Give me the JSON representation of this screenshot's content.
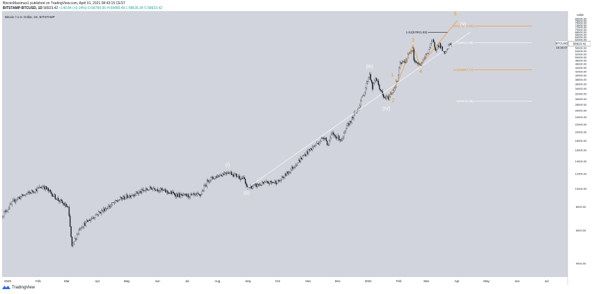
{
  "header": {
    "line1": "BitcoinMaximus1 published on TradingView.com, April 01, 2021 08:43:15 CEST",
    "symbol": "BITSTAMP:BTCUSD, 1D",
    "price": "58923.42",
    "change": "+140.84 (+0.24%)",
    "ohlc": "O:58789.96 H:59489.49 L:58635.34 C:58923.42"
  },
  "footer": {
    "brand": "TradingView",
    "logo_icon": "tradingview-logo-icon"
  },
  "chart_data": {
    "type": "candlestick",
    "title": "Bitcoin / U.S. Dollar, 1D, BITSTAMP",
    "y_axis_unit": "USD",
    "y_scale": "log",
    "ylim": [
      3400,
      88000
    ],
    "x_range": [
      "2020-01-01",
      "2021-07-28"
    ],
    "y_ticks": [
      4000,
      6000,
      8000,
      10000,
      12000,
      14000,
      16000,
      18000,
      20000,
      22000,
      24000,
      26000,
      28000,
      30000,
      32000,
      34000,
      36000,
      38000,
      40000,
      42000,
      44000,
      46000,
      48000,
      50000,
      52000,
      54000,
      56000,
      58000,
      60000,
      62000,
      64000,
      66000,
      68000,
      70000,
      72000,
      74000,
      76000,
      78000,
      80000
    ],
    "y_tick_labels": [
      "4000.00",
      "6000.00",
      "8000.00",
      "10000.00",
      "12000.00",
      "14000.00",
      "16000.00",
      "18000.00",
      "20000.00",
      "22000.00",
      "24000.00",
      "26000.00",
      "28000.00",
      "30000.00",
      "32000.00",
      "34000.00",
      "36000.00",
      "38000.00",
      "40000.00",
      "42000.00",
      "44000.00",
      "46000.00",
      "48000.00",
      "50000.00",
      "52000.00",
      "54000.00",
      "56000.00",
      "58000.00",
      "60000.00",
      "62000.00",
      "64000.00",
      "66000.00",
      "68000.00",
      "70000.00",
      "72000.00",
      "74000.00",
      "76000.00",
      "78000.00",
      "80000.00"
    ],
    "x_ticks": [
      {
        "date": "2020-01-01",
        "label": "2020"
      },
      {
        "date": "2020-02-01",
        "label": "Feb"
      },
      {
        "date": "2020-03-01",
        "label": "Mar"
      },
      {
        "date": "2020-04-01",
        "label": "Apr"
      },
      {
        "date": "2020-05-01",
        "label": "May"
      },
      {
        "date": "2020-06-01",
        "label": "Jun"
      },
      {
        "date": "2020-07-01",
        "label": "Jul"
      },
      {
        "date": "2020-08-01",
        "label": "Aug"
      },
      {
        "date": "2020-09-01",
        "label": "Sep"
      },
      {
        "date": "2020-10-01",
        "label": "Oct"
      },
      {
        "date": "2020-11-01",
        "label": "Nov"
      },
      {
        "date": "2020-12-01",
        "label": "Dec"
      },
      {
        "date": "2021-01-01",
        "label": "2021"
      },
      {
        "date": "2021-02-01",
        "label": "Feb"
      },
      {
        "date": "2021-03-01",
        "label": "Mar"
      },
      {
        "date": "2021-04-01",
        "label": "Apr"
      },
      {
        "date": "2021-05-01",
        "label": "May"
      },
      {
        "date": "2021-06-01",
        "label": "Jun"
      },
      {
        "date": "2021-07-01",
        "label": "Jul"
      }
    ],
    "price_path": [
      [
        "2020-01-01",
        7200
      ],
      [
        "2020-01-15",
        8800
      ],
      [
        "2020-02-12",
        10300
      ],
      [
        "2020-02-26",
        8800
      ],
      [
        "2020-03-08",
        7900
      ],
      [
        "2020-03-12",
        4900
      ],
      [
        "2020-03-20",
        6200
      ],
      [
        "2020-04-06",
        7300
      ],
      [
        "2020-04-30",
        8800
      ],
      [
        "2020-05-15",
        9400
      ],
      [
        "2020-06-02",
        10100
      ],
      [
        "2020-06-30",
        9150
      ],
      [
        "2020-07-20",
        9200
      ],
      [
        "2020-07-28",
        11100
      ],
      [
        "2020-08-17",
        12300
      ],
      [
        "2020-09-03",
        11200
      ],
      [
        "2020-09-05",
        10100
      ],
      [
        "2020-09-25",
        10700
      ],
      [
        "2020-10-08",
        10900
      ],
      [
        "2020-10-21",
        12800
      ],
      [
        "2020-11-05",
        15500
      ],
      [
        "2020-11-24",
        19000
      ],
      [
        "2020-11-26",
        17000
      ],
      [
        "2020-12-01",
        19500
      ],
      [
        "2020-12-11",
        18100
      ],
      [
        "2020-12-16",
        21300
      ],
      [
        "2020-12-27",
        26500
      ],
      [
        "2021-01-03",
        33000
      ],
      [
        "2021-01-08",
        41000
      ],
      [
        "2021-01-11",
        34000
      ],
      [
        "2021-01-14",
        39000
      ],
      [
        "2021-01-22",
        30500
      ],
      [
        "2021-01-27",
        30400
      ],
      [
        "2021-02-01",
        33500
      ],
      [
        "2021-02-05",
        37500
      ],
      [
        "2021-02-08",
        46000
      ],
      [
        "2021-02-13",
        47500
      ],
      [
        "2021-02-21",
        57000
      ],
      [
        "2021-02-22",
        48500
      ],
      [
        "2021-02-28",
        45200
      ],
      [
        "2021-03-04",
        48500
      ],
      [
        "2021-03-13",
        61000
      ],
      [
        "2021-03-16",
        55500
      ],
      [
        "2021-03-20",
        58500
      ],
      [
        "2021-03-25",
        51500
      ],
      [
        "2021-03-30",
        58800
      ],
      [
        "2021-04-01",
        58923
      ]
    ],
    "current_price": 58923.42,
    "price_label": "BTCUSD",
    "price_tag": "58923.42",
    "countdown": "15:16:47",
    "wave_labels": [
      {
        "text": "(I)",
        "date": "2020-08-17",
        "price": 13100,
        "color": "#ffffff"
      },
      {
        "text": "(II)",
        "date": "2020-09-05",
        "price": 9300,
        "color": "#ffffff"
      },
      {
        "text": "(III)",
        "date": "2021-01-08",
        "price": 43800,
        "color": "#ffffff"
      },
      {
        "text": "(IV)",
        "date": "2021-01-25",
        "price": 26200,
        "color": "#ffffff"
      },
      {
        "text": "(V)",
        "date": "2021-04-13",
        "price": 73500,
        "color": "#ffffff"
      },
      {
        "text": "1",
        "date": "2021-01-31",
        "price": 39600,
        "color": "#f7931a"
      },
      {
        "text": "2",
        "date": "2021-02-01",
        "price": 29000,
        "color": "#f7931a"
      },
      {
        "text": "3",
        "date": "2021-02-21",
        "price": 60500,
        "color": "#f7931a"
      },
      {
        "text": "4",
        "date": "2021-03-01",
        "price": 41200,
        "color": "#f7931a"
      },
      {
        "text": "5",
        "date": "2021-04-05",
        "price": 83500,
        "color": "#f7931a"
      }
    ],
    "wave_lines": [
      {
        "color": "#f7931a",
        "points": [
          [
            "2021-01-25",
            30000
          ],
          [
            "2021-02-05",
            36500
          ],
          [
            "2021-02-21",
            58000
          ],
          [
            "2021-02-28",
            45000
          ],
          [
            "2021-04-07",
            78500
          ]
        ]
      },
      {
        "color": "#ffffff",
        "points": [
          [
            "2020-09-05",
            10000
          ],
          [
            "2021-04-20",
            68000
          ]
        ]
      }
    ],
    "fib_levels": [
      {
        "label": "1.61(67901.83)",
        "price": 67901.83,
        "from": "2021-03-08",
        "to": "2021-03-28",
        "color": "#131722"
      },
      {
        "label": "1(59617.28)",
        "price": 59617.28,
        "from": "2021-04-24",
        "to": "2021-06-22",
        "color": "#ffffff"
      },
      {
        "label": "0(29216.96)",
        "price": 29216.96,
        "from": "2021-04-24",
        "to": "2021-06-22",
        "color": "#ffffff"
      },
      {
        "label": "0.5(73178.45)",
        "price": 73178.45,
        "from": "2021-04-24",
        "to": "2021-06-22",
        "color": "#f7931a"
      },
      {
        "label": "0.5(42837.71)",
        "price": 42837.71,
        "from": "2021-04-24",
        "to": "2021-06-22",
        "color": "#f7931a"
      }
    ],
    "colors": {
      "background": "#d1d4dc",
      "candle": "#131722",
      "axis_bg": "#ffffff",
      "price_tag": "#ffffff",
      "wave_white": "#ffffff",
      "wave_orange": "#f7931a"
    }
  }
}
